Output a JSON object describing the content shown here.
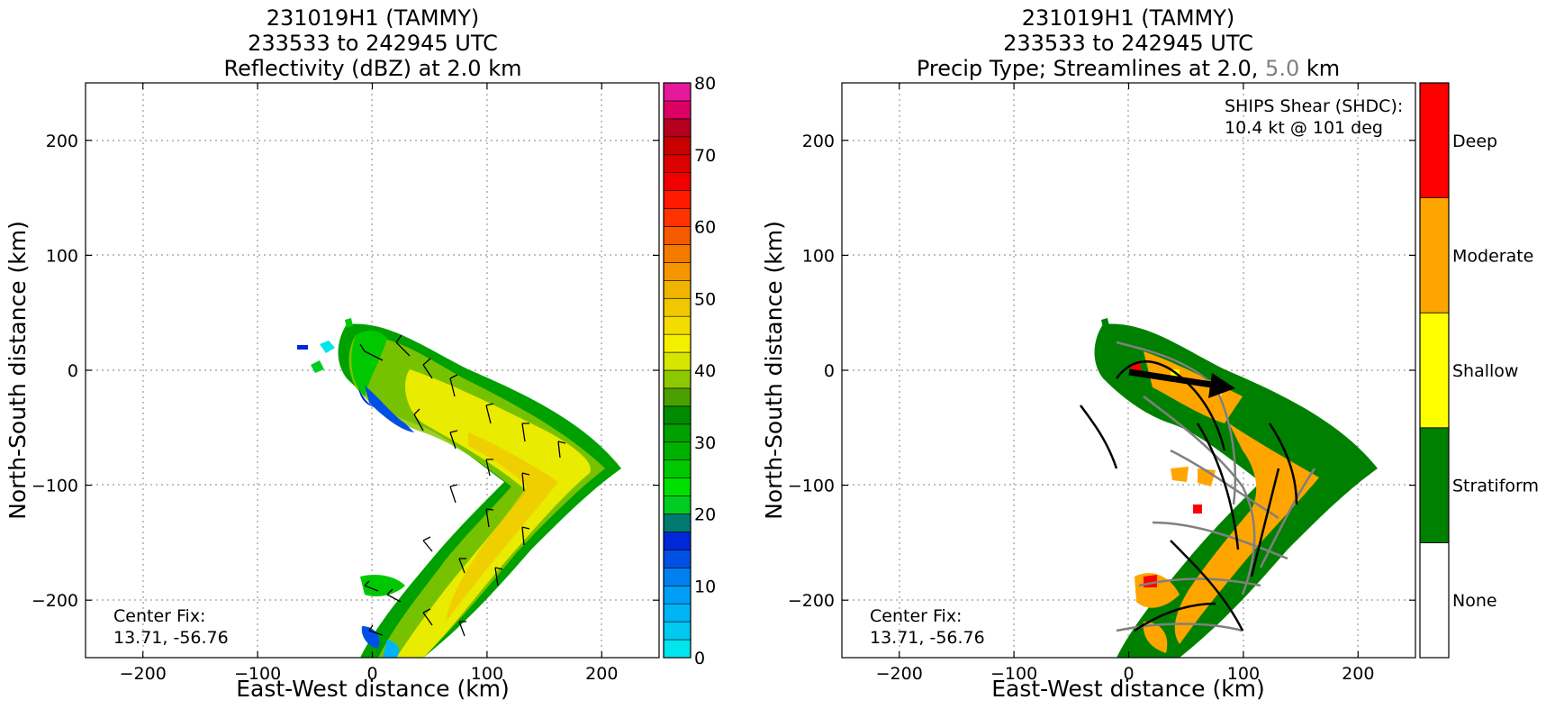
{
  "chart_data": [
    {
      "type": "heatmap",
      "title_lines": [
        "231019H1 (TAMMY)",
        "233533 to 242945 UTC",
        "Reflectivity (dBZ) at 2.0 km"
      ],
      "xlabel": "East-West distance (km)",
      "ylabel": "North-South distance (km)",
      "xlim": [
        -250,
        250
      ],
      "ylim": [
        -250,
        250
      ],
      "xticks": [
        -200,
        -100,
        0,
        100,
        200
      ],
      "yticks": [
        -200,
        -100,
        0,
        100,
        200
      ],
      "xtick_labels": [
        "−200",
        "−100",
        "0",
        "100",
        "200"
      ],
      "ytick_labels": [
        "−200",
        "−100",
        "0",
        "100",
        "200"
      ],
      "grid": true,
      "annotation_lines": [
        "Center Fix:",
        "13.71, -56.76"
      ],
      "colorbar": {
        "min": 0,
        "max": 80,
        "step": 2.5,
        "tick_values": [
          0,
          10,
          20,
          30,
          40,
          50,
          60,
          70,
          80
        ],
        "tick_labels": [
          "0",
          "10",
          "20",
          "30",
          "40",
          "50",
          "60",
          "70",
          "80"
        ],
        "colors": [
          "#00e5ee",
          "#00c9f2",
          "#00b4f5",
          "#009ff5",
          "#0080f0",
          "#0050e6",
          "#0028d8",
          "#007a6e",
          "#00cc22",
          "#00e000",
          "#00c800",
          "#00b000",
          "#00a000",
          "#008c00",
          "#4aa000",
          "#8cc800",
          "#d6e600",
          "#f5f000",
          "#f5dc00",
          "#f0c800",
          "#f0b400",
          "#f59600",
          "#f57a00",
          "#f55a00",
          "#ff3300",
          "#ff1a00",
          "#f00000",
          "#dc0000",
          "#c80000",
          "#b4001e",
          "#dc0064",
          "#e6189c",
          "#f000dc",
          "#e646e6",
          "#b464dc",
          "#9650be",
          "#783c96",
          "#3c1e50"
        ]
      },
      "region_extent": {
        "x": [
          -60,
          215
        ],
        "y": [
          -250,
          45
        ]
      }
    },
    {
      "type": "heatmap",
      "title_lines": [
        "231019H1 (TAMMY)",
        "233533 to 242945 UTC",
        "Precip Type; Streamlines at 2.0,",
        "5.0",
        "km"
      ],
      "xlabel": "East-West distance (km)",
      "ylabel": "North-South distance (km)",
      "xlim": [
        -250,
        250
      ],
      "ylim": [
        -250,
        250
      ],
      "xticks": [
        -200,
        -100,
        0,
        100,
        200
      ],
      "yticks": [
        -200,
        -100,
        0,
        100,
        200
      ],
      "xtick_labels": [
        "−200",
        "−100",
        "0",
        "100",
        "200"
      ],
      "ytick_labels": [
        "−200",
        "−100",
        "0",
        "100",
        "200"
      ],
      "grid": true,
      "annotation_lines": [
        "Center Fix:",
        "13.71, -56.76"
      ],
      "shear_lines": [
        "SHIPS Shear (SHDC):",
        "10.4 kt @ 101 deg"
      ],
      "shear_arrow": {
        "speed_kt": 10.4,
        "direction_deg": 101
      },
      "streamline_colors": {
        "2.0 km": "#000000",
        "5.0 km": "#808080"
      },
      "colorbar": {
        "categories": [
          "None",
          "Stratiform",
          "Shallow",
          "Moderate",
          "Deep"
        ],
        "colors": [
          "#ffffff",
          "#008000",
          "#ffff00",
          "#ffa500",
          "#ff0000"
        ]
      },
      "region_extent": {
        "x": [
          -25,
          210
        ],
        "y": [
          -250,
          45
        ]
      }
    }
  ]
}
